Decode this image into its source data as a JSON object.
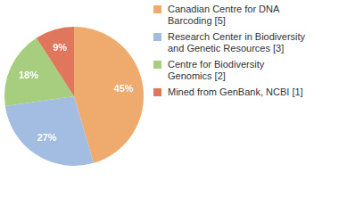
{
  "chart_data": {
    "type": "pie",
    "categories": [
      "Canadian Centre for DNA Barcoding [5]",
      "Research Center in Biodiversity and Genetic Resources [3]",
      "Centre for Biodiversity Genomics [2]",
      "Mined from GenBank, NCBI [1]"
    ],
    "values": [
      45,
      27,
      18,
      9
    ],
    "value_labels": [
      "45%",
      "27%",
      "18%",
      "9%"
    ],
    "colors": [
      "#efaa6e",
      "#a3bde2",
      "#a7cd7e",
      "#e0775d"
    ],
    "data_labels": true,
    "legend": "top-right"
  }
}
